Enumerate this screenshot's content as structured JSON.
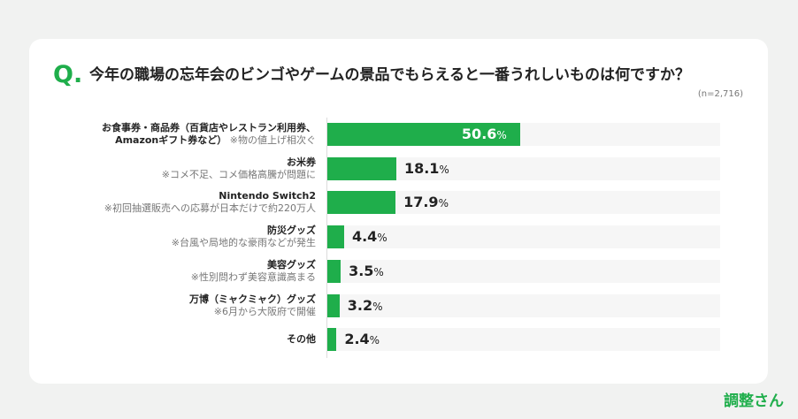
{
  "question": {
    "prefix": "Q.",
    "text": "今年の職場の忘年会のビンゴやゲームの景品でもらえると一番うれしいものは何ですか？",
    "sample": "(n=2,716)"
  },
  "colors": {
    "accent": "#1fae4b",
    "track": "#f6f6f6"
  },
  "brand": "調整さん",
  "chart_data": {
    "type": "bar",
    "orientation": "horizontal",
    "unit": "%",
    "xlim": [
      0,
      100
    ],
    "grid": false,
    "categories": [
      {
        "lines": [
          {
            "main": "お食事券・商品券（百貨店やレストラン利用券、"
          },
          {
            "main": "Amazonギフト券など）",
            "note": "※物の値上げ相次ぐ"
          }
        ]
      },
      {
        "lines": [
          {
            "main": "お米券"
          },
          {
            "note": "※コメ不足、コメ価格高騰が問題に"
          }
        ]
      },
      {
        "lines": [
          {
            "main": "Nintendo Switch2"
          },
          {
            "note": "※初回抽選販売への応募が日本だけで約220万人"
          }
        ]
      },
      {
        "lines": [
          {
            "main": "防災グッズ"
          },
          {
            "note": "※台風や局地的な豪雨などが発生"
          }
        ]
      },
      {
        "lines": [
          {
            "main": "美容グッズ"
          },
          {
            "note": "※性別問わず美容意識高まる"
          }
        ]
      },
      {
        "lines": [
          {
            "main": "万博（ミャクミャク）グッズ"
          },
          {
            "note": "※6月から大阪府で開催"
          }
        ]
      },
      {
        "lines": [
          {
            "main": "その他"
          }
        ]
      }
    ],
    "values": [
      50.6,
      18.1,
      17.9,
      4.4,
      3.5,
      3.2,
      2.4
    ],
    "value_labels": [
      "50.6",
      "18.1",
      "17.9",
      "4.4",
      "3.5",
      "3.2",
      "2.4"
    ],
    "label_suffix": "%"
  }
}
